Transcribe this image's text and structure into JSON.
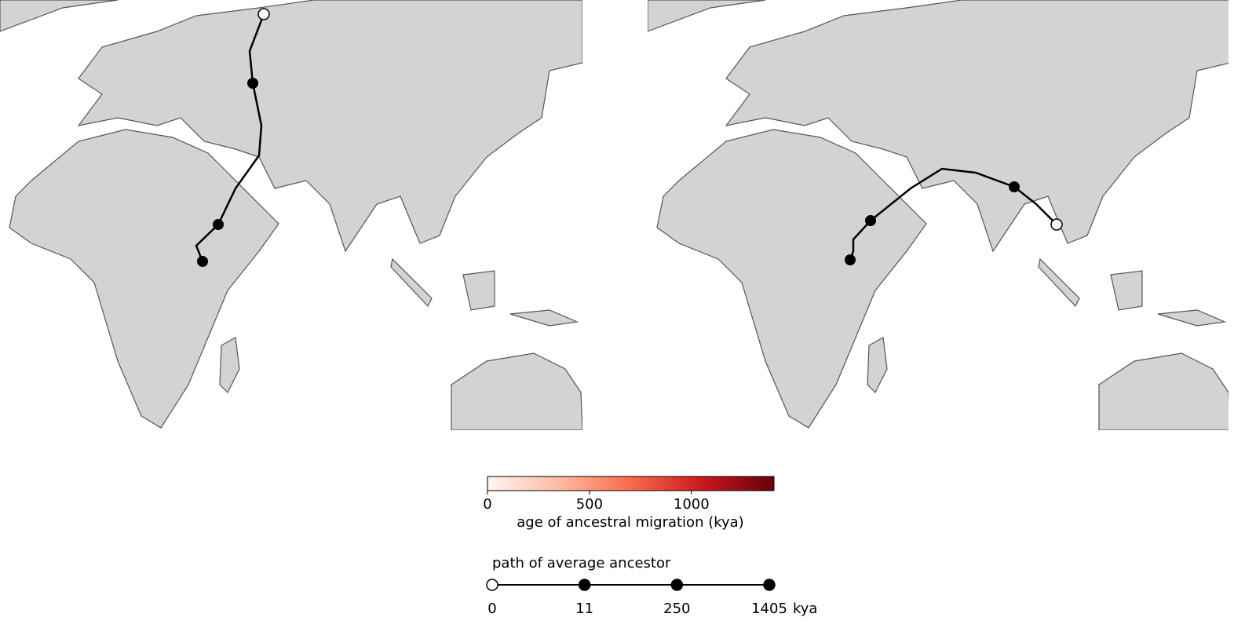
{
  "colorbar": {
    "label": "age of ancestral migration (kya)",
    "range": [
      0,
      1405
    ],
    "ticks": [
      0,
      500,
      1000
    ],
    "colors": [
      "#fff5f0",
      "#fcbba1",
      "#fb6a4a",
      "#cb181d",
      "#67000d"
    ]
  },
  "path_legend": {
    "title": "path of average ancestor",
    "stops": [
      0,
      11,
      250,
      1405
    ],
    "unit": "kya"
  }
}
